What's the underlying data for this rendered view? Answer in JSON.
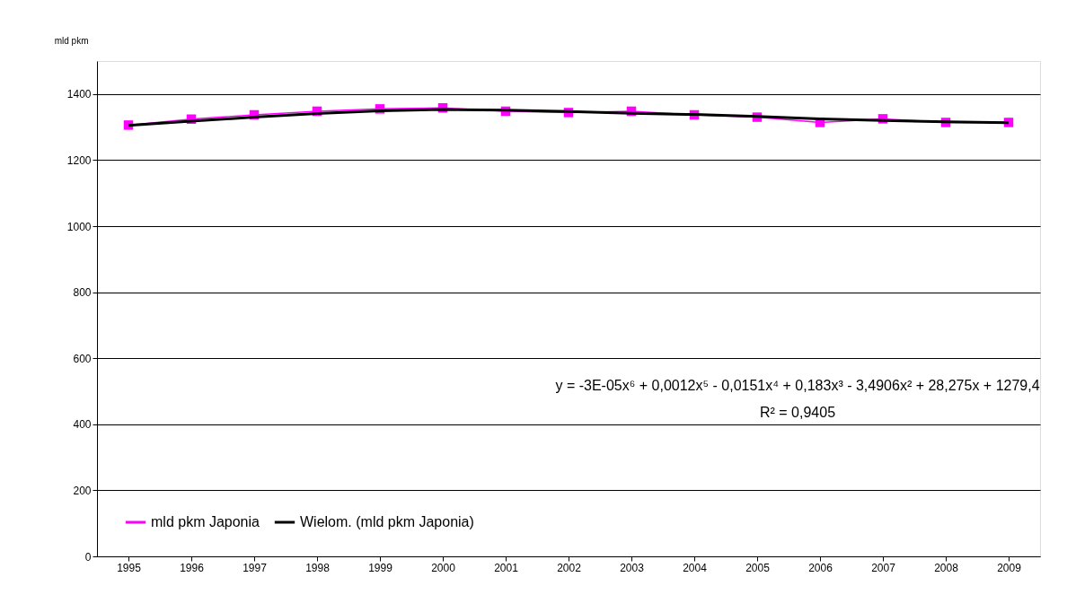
{
  "chart_data": {
    "type": "line",
    "ylabel": "mld pkm",
    "categories": [
      "1995",
      "1996",
      "1997",
      "1998",
      "1999",
      "2000",
      "2001",
      "2002",
      "2003",
      "2004",
      "2005",
      "2006",
      "2007",
      "2008",
      "2009"
    ],
    "series": [
      {
        "name": "mld pkm Japonia",
        "color": "#ff00ff",
        "marker": "square",
        "values": [
          1306,
          1324,
          1337,
          1348,
          1355,
          1358,
          1348,
          1344,
          1348,
          1337,
          1330,
          1314,
          1325,
          1314,
          1314
        ]
      },
      {
        "name": "Wielom. (mld pkm Japonia)",
        "type": "line",
        "color": "#000000",
        "marker": "none",
        "values": [
          1305,
          1318,
          1330,
          1341,
          1349,
          1353,
          1351,
          1347,
          1342,
          1338,
          1332,
          1325,
          1320,
          1316,
          1313
        ]
      }
    ],
    "ylim": [
      0,
      1500
    ],
    "yticks": [
      0,
      200,
      400,
      600,
      800,
      1000,
      1200,
      1400
    ],
    "grid": "y",
    "legend": "bottom left",
    "annotations": [
      "y = -3E-05x⁶ + 0,0012x⁵ - 0,0151x⁴ + 0,183x³ - 3,4906x² + 28,275x + 1279,4",
      "R² = 0,9405"
    ]
  }
}
